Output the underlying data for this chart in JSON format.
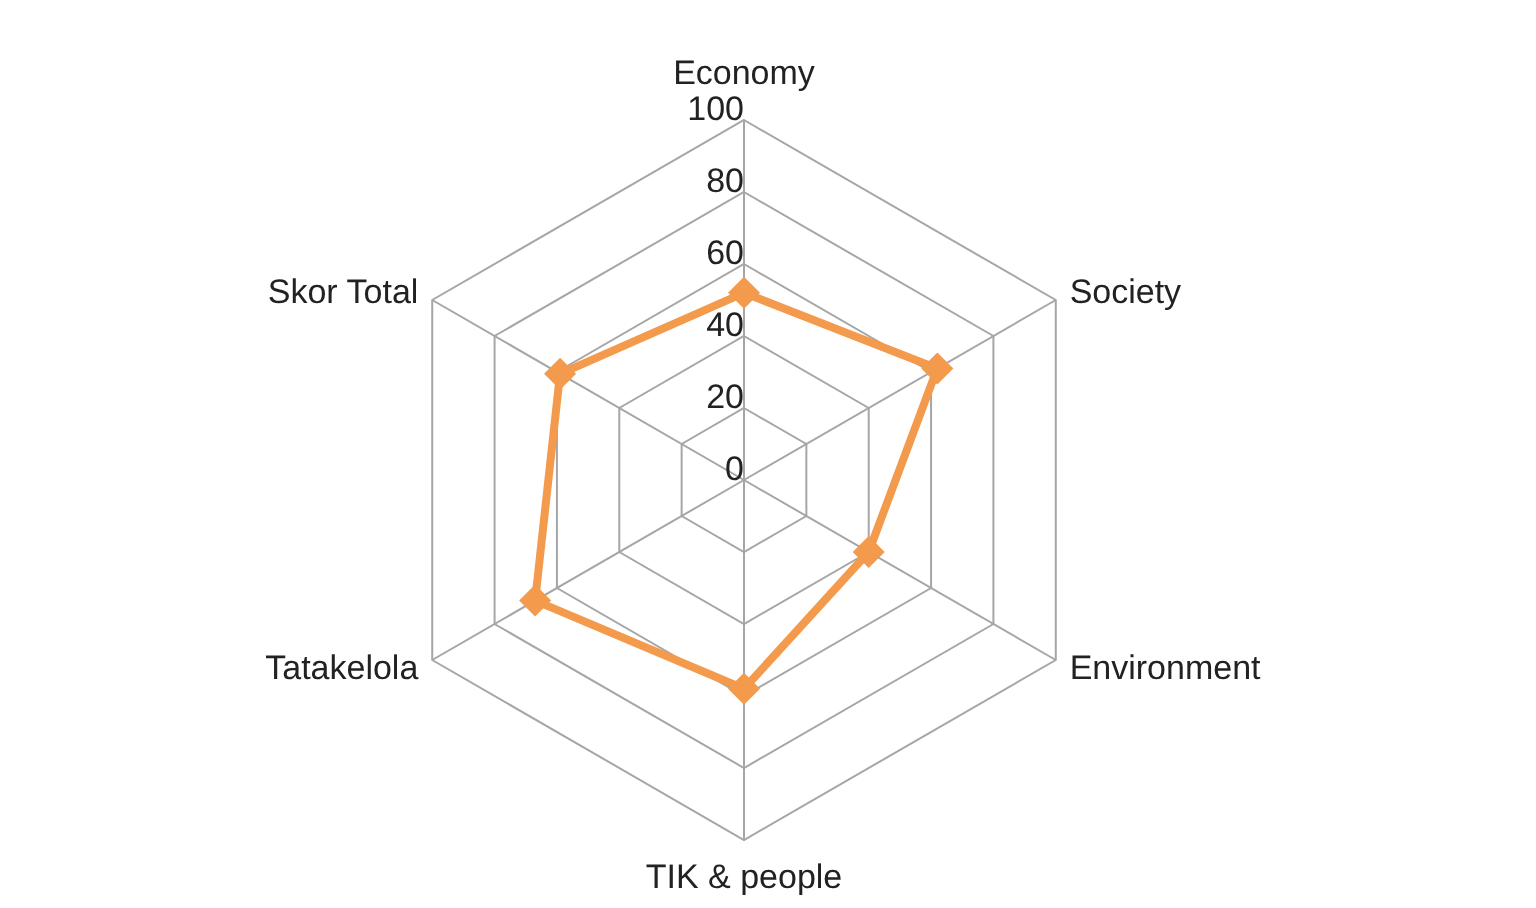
{
  "chart_data": {
    "type": "radar",
    "categories": [
      "Economy",
      "Society",
      "Environment",
      "TIK & people",
      "Tatakelola",
      "Skor Total"
    ],
    "series": [
      {
        "color": "#f39a4c",
        "values": [
          52,
          62,
          40,
          58,
          67,
          59
        ]
      }
    ],
    "ylim": [
      0,
      100
    ],
    "yticks": [
      0,
      20,
      40,
      60,
      80,
      100
    ],
    "grid": true,
    "marker": "diamond"
  }
}
